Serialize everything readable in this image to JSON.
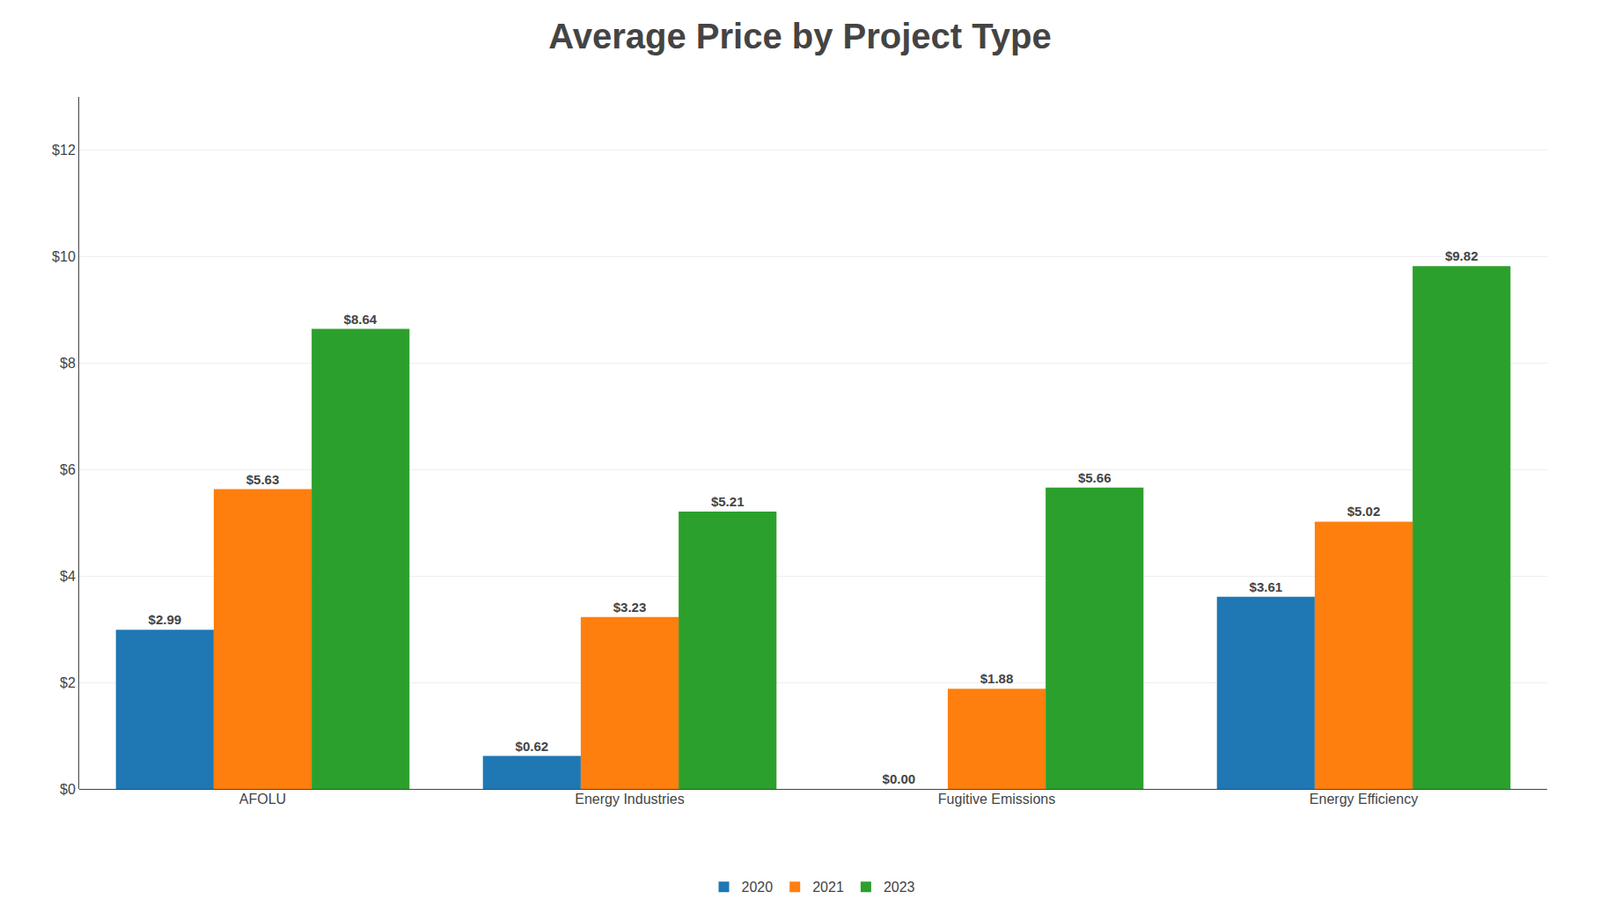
{
  "chart_data": {
    "type": "bar",
    "title": "Average Price by Project Type",
    "categories": [
      "AFOLU",
      "Energy Industries",
      "Fugitive Emissions",
      "Energy Efficiency"
    ],
    "series": [
      {
        "name": "2020",
        "values": [
          2.99,
          0.62,
          0.0,
          3.61
        ],
        "value_labels": [
          "$2.99",
          "$0.62",
          "$0.00",
          "$3.61"
        ]
      },
      {
        "name": "2021",
        "values": [
          5.63,
          3.23,
          1.88,
          5.02
        ],
        "value_labels": [
          "$5.63",
          "$3.23",
          "$1.88",
          "$5.02"
        ]
      },
      {
        "name": "2023",
        "values": [
          8.64,
          5.21,
          5.66,
          9.82
        ],
        "value_labels": [
          "$8.64",
          "$5.21",
          "$5.66",
          "$9.82"
        ]
      }
    ],
    "ylim": [
      0,
      13.0
    ],
    "yticks": [
      {
        "value": 0,
        "label": "$0"
      },
      {
        "value": 2,
        "label": "$2"
      },
      {
        "value": 4,
        "label": "$4"
      },
      {
        "value": 6,
        "label": "$6"
      },
      {
        "value": 8,
        "label": "$8"
      },
      {
        "value": 10,
        "label": "$10"
      },
      {
        "value": 12,
        "label": "$12"
      }
    ],
    "grid": true,
    "legend": "bottom",
    "data_labels": true
  }
}
